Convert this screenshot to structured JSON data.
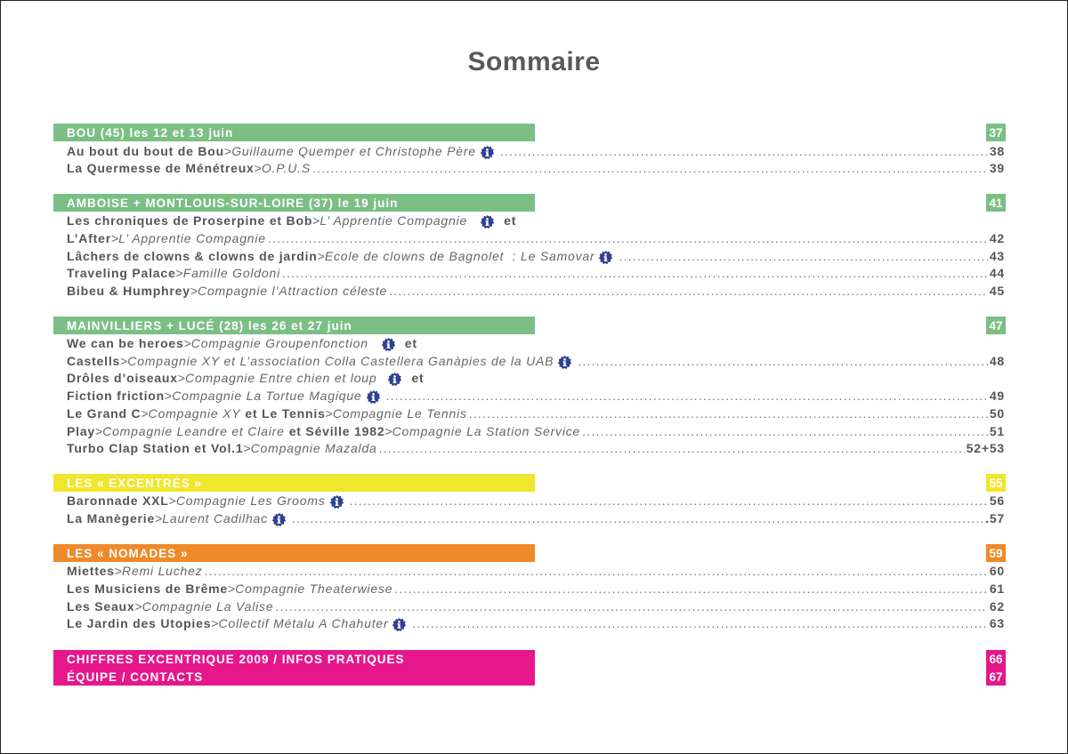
{
  "title": "Sommaire",
  "colors": {
    "green": "#7bbf85",
    "yellow": "#f0e62e",
    "orange": "#ef8a2a",
    "magenta": "#e5178b",
    "icon_blue": "#2f3f95"
  },
  "sections": {
    "bou": {
      "header": "BOU (45) les 12 et 13 juin",
      "page": "37",
      "rows": [
        {
          "bold": "Au bout du bout de Bou",
          "sep": " > ",
          "italic": "Guillaume Quemper et Christophe Père",
          "page": "38"
        },
        {
          "bold": "La Quermesse de Ménétreux",
          "sep": " > ",
          "italic": "O.P.U.S",
          "page": "39"
        }
      ]
    },
    "amboise": {
      "header": "AMBOISE + MONTLOUIS-SUR-LOIRE (37) le 19 juin",
      "page": "41",
      "rows": [
        {
          "bold": "Les chroniques de Proserpine et Bob",
          "sep": " > ",
          "italic": "L’ Apprentie Compagnie",
          "suffix": "et"
        },
        {
          "bold": "L’After",
          "sep": " > ",
          "italic": "L’ Apprentie Compagnie",
          "page": "42"
        },
        {
          "bold": "Lâchers de clowns & clowns de jardin",
          "sep": " > ",
          "italic": "Ecole de clowns de Bagnolet  : Le Samovar",
          "page": "43"
        },
        {
          "bold": "Traveling Palace",
          "sep": " > ",
          "italic": "Famille Goldoni",
          "page": "44"
        },
        {
          "bold": "Bibeu & Humphrey",
          "sep": " > ",
          "italic": "Compagnie l’Attraction céleste",
          "page": "45"
        }
      ]
    },
    "mainvilliers": {
      "header": "MAINVILLIERS + LUCÉ (28) les 26 et 27 juin",
      "page": "47",
      "rows": [
        {
          "bold": "We can be heroes",
          "sep": " > ",
          "italic": "Compagnie Groupenfonction",
          "suffix": "et"
        },
        {
          "bold": "Castells",
          "sep": " > ",
          "italic": "Compagnie XY et L’association Colla Castellera Ganàpies de la UAB",
          "page": "48"
        },
        {
          "bold": "Drôles d’oiseaux",
          "sep": " > ",
          "italic": "Compagnie Entre chien et loup",
          "suffix": "et"
        },
        {
          "bold": "Fiction friction",
          "sep": " > ",
          "italic": "Compagnie La Tortue Magique",
          "page": "49"
        },
        {
          "bold": "Le Grand C",
          "sep": " > ",
          "italic": "Compagnie XY",
          "bold2": "et Le Tennis",
          "sep2": " > ",
          "italic2": "Compagnie Le Tennis",
          "page": "50"
        },
        {
          "bold": "Play",
          "sep": " > ",
          "italic": "Compagnie Leandre et Claire",
          "bold2": "et Séville 1982",
          "sep2": " > ",
          "italic2": "Compagnie La Station Service",
          "page": "51"
        },
        {
          "bold": "Turbo Clap Station et Vol.1",
          "sep": " > ",
          "italic": "Compagnie Mazalda",
          "page": "52+53"
        }
      ]
    },
    "excentres": {
      "header": "LES « EXCENTRÉS »",
      "page": "55",
      "rows": [
        {
          "bold": "Baronnade XXL",
          "sep": " > ",
          "italic": "Compagnie Les Grooms",
          "page": "56"
        },
        {
          "bold": "La Manègerie",
          "sep": " > ",
          "italic": "Laurent Cadilhac",
          "page": ".57"
        }
      ]
    },
    "nomades": {
      "header": "LES « NOMADES »",
      "page": "59",
      "rows": [
        {
          "bold": "Miettes",
          "sep": " > ",
          "italic": "Remi Luchez",
          "page": "60"
        },
        {
          "bold": "Les Musiciens de Brême",
          "sep": " > ",
          "italic": "Compagnie Theaterwiese",
          "page": "61"
        },
        {
          "bold": "Les Seaux",
          "sep": " > ",
          "italic": "Compagnie La Valise",
          "page": "62"
        },
        {
          "bold": "Le Jardin des Utopies",
          "sep": " > ",
          "italic": "Collectif Métalu A Chahuter",
          "page": "63"
        }
      ]
    },
    "infos": {
      "header": "CHIFFRES EXCENTRIQUE 2009 / INFOS PRATIQUES",
      "page": "66"
    },
    "equipe": {
      "header": "ÉQUIPE / CONTACTS",
      "page": "67"
    }
  }
}
